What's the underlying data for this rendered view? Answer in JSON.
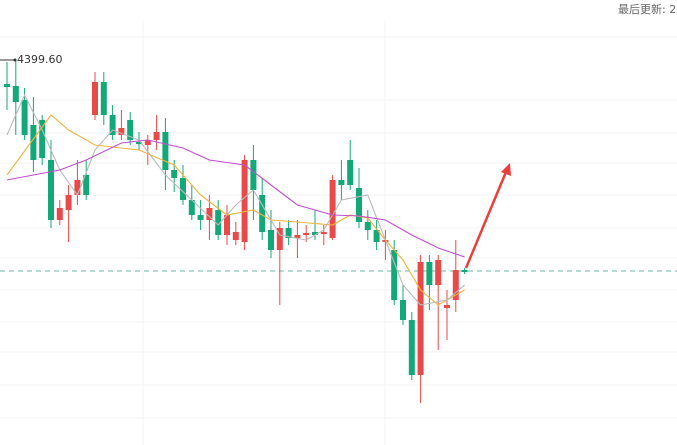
{
  "chart_data": {
    "type": "candlestick",
    "update_text": "最后更新: 2",
    "up_color": "#e84a4a",
    "down_color": "#12a878",
    "ylim": [
      4207.1,
      4429.6
    ],
    "high_label": {
      "value": 4399.6,
      "label": "4399.60"
    },
    "reference_line": {
      "value": 4294.1,
      "color": "#6fb5a8",
      "dashed": true
    },
    "ohlc": [
      [
        4387.6,
        4398.6,
        4374.6,
        4386.1
      ],
      [
        4386.6,
        4399.6,
        4362.1,
        4378.6
      ],
      [
        4379.6,
        4385.6,
        4359.6,
        4362.1
      ],
      [
        4367.1,
        4381.1,
        4343.6,
        4349.6
      ],
      [
        4369.6,
        4372.1,
        4347.1,
        4350.6
      ],
      [
        4349.6,
        4359.6,
        4315.6,
        4319.6
      ],
      [
        4319.6,
        4329.6,
        4317.1,
        4325.6
      ],
      [
        4324.6,
        4337.1,
        4308.6,
        4332.1
      ],
      [
        4332.1,
        4349.6,
        4327.1,
        4339.6
      ],
      [
        4342.1,
        4349.6,
        4329.6,
        4332.1
      ],
      [
        4372.1,
        4393.6,
        4369.6,
        4388.6
      ],
      [
        4388.6,
        4393.6,
        4367.1,
        4372.1
      ],
      [
        4372.1,
        4377.1,
        4359.6,
        4362.1
      ],
      [
        4362.1,
        4374.6,
        4359.6,
        4365.6
      ],
      [
        4369.6,
        4373.6,
        4357.1,
        4359.6
      ],
      [
        4358.6,
        4363.6,
        4354.6,
        4357.6
      ],
      [
        4357.1,
        4362.1,
        4347.1,
        4359.6
      ],
      [
        4359.6,
        4372.1,
        4354.6,
        4363.6
      ],
      [
        4363.6,
        4370.6,
        4334.6,
        4344.6
      ],
      [
        4344.6,
        4349.6,
        4333.6,
        4340.6
      ],
      [
        4340.6,
        4347.1,
        4327.1,
        4329.6
      ],
      [
        4329.6,
        4337.1,
        4319.6,
        4322.1
      ],
      [
        4322.1,
        4329.6,
        4314.6,
        4319.6
      ],
      [
        4319.6,
        4332.1,
        4309.6,
        4325.6
      ],
      [
        4324.6,
        4329.6,
        4309.6,
        4312.1
      ],
      [
        4312.1,
        4327.1,
        4307.1,
        4322.1
      ],
      [
        4309.6,
        4318.6,
        4307.1,
        4313.6
      ],
      [
        4308.6,
        4352.1,
        4304.6,
        4349.6
      ],
      [
        4349.6,
        4357.1,
        4319.6,
        4334.6
      ],
      [
        4332.1,
        4340.6,
        4309.6,
        4313.6
      ],
      [
        4314.6,
        4324.6,
        4300.6,
        4304.6
      ],
      [
        4304.6,
        4318.6,
        4277.1,
        4315.6
      ],
      [
        4315.6,
        4319.6,
        4307.1,
        4310.6
      ],
      [
        4310.6,
        4319.6,
        4300.6,
        4312.1
      ],
      [
        4312.1,
        4317.1,
        4308.6,
        4313.1
      ],
      [
        4313.6,
        4324.6,
        4309.6,
        4312.1
      ],
      [
        4312.6,
        4317.1,
        4307.1,
        4313.6
      ],
      [
        4310.6,
        4342.1,
        4309.6,
        4339.6
      ],
      [
        4339.6,
        4349.6,
        4329.6,
        4337.1
      ],
      [
        4349.6,
        4359.6,
        4334.6,
        4337.1
      ],
      [
        4335.6,
        4345.6,
        4315.6,
        4318.6
      ],
      [
        4318.6,
        4324.6,
        4309.6,
        4314.6
      ],
      [
        4314.6,
        4319.6,
        4304.6,
        4308.6
      ],
      [
        4308.6,
        4314.6,
        4299.6,
        4309.6
      ],
      [
        4304.6,
        4309.6,
        4277.1,
        4279.6
      ],
      [
        4279.6,
        4287.1,
        4267.1,
        4269.6
      ],
      [
        4269.6,
        4273.6,
        4239.6,
        4242.1
      ],
      [
        4242.1,
        4302.1,
        4228.1,
        4298.6
      ],
      [
        4298.6,
        4302.1,
        4274.6,
        4287.1
      ],
      [
        4287.1,
        4302.1,
        4254.6,
        4299.6
      ],
      [
        4275.6,
        4284.6,
        4259.6,
        4277.1
      ],
      [
        4279.6,
        4309.6,
        4273.6,
        4294.6
      ],
      [
        4294.6,
        4295.6,
        4292.6,
        4293.6
      ]
    ],
    "lines": [
      {
        "color": "#f0b43c",
        "x": [
          0,
          5,
          7,
          10,
          15,
          19,
          22,
          25,
          28,
          30,
          33,
          37,
          39,
          41,
          43,
          45,
          47,
          49,
          52
        ],
        "values": [
          4342.1,
          4372.1,
          4364.6,
          4357.1,
          4354.6,
          4347.1,
          4332.1,
          4322.1,
          4324.6,
          4319.6,
          4318.6,
          4317.1,
          4322.1,
          4320.6,
          4309.6,
          4299.6,
          4284.6,
          4277.1,
          4284.6
        ]
      },
      {
        "color": "#bbbbbb",
        "x": [
          0,
          2,
          4,
          6,
          8,
          10,
          12,
          15,
          18,
          21,
          24,
          26,
          28,
          31,
          34,
          36,
          38,
          41,
          43,
          45,
          47,
          50,
          52
        ],
        "values": [
          4362.1,
          4382.1,
          4364.6,
          4344.6,
          4332.1,
          4354.6,
          4364.6,
          4359.6,
          4342.1,
          4329.6,
          4317.1,
          4327.1,
          4334.6,
          4312.1,
          4309.6,
          4314.6,
          4329.6,
          4332.1,
          4309.6,
          4287.1,
          4277.1,
          4279.6,
          4287.1
        ]
      },
      {
        "color": "#c04fd0",
        "x": [
          0,
          3,
          6,
          9,
          13,
          16,
          20,
          23,
          27,
          30,
          33,
          37,
          40,
          43,
          46,
          49,
          52
        ],
        "values": [
          4339.6,
          4342.1,
          4344.6,
          4349.6,
          4358.1,
          4359.6,
          4355.6,
          4349.6,
          4347.1,
          4337.1,
          4327.1,
          4322.1,
          4321.6,
          4319.6,
          4312.1,
          4305.6,
          4301.1
        ]
      }
    ]
  }
}
